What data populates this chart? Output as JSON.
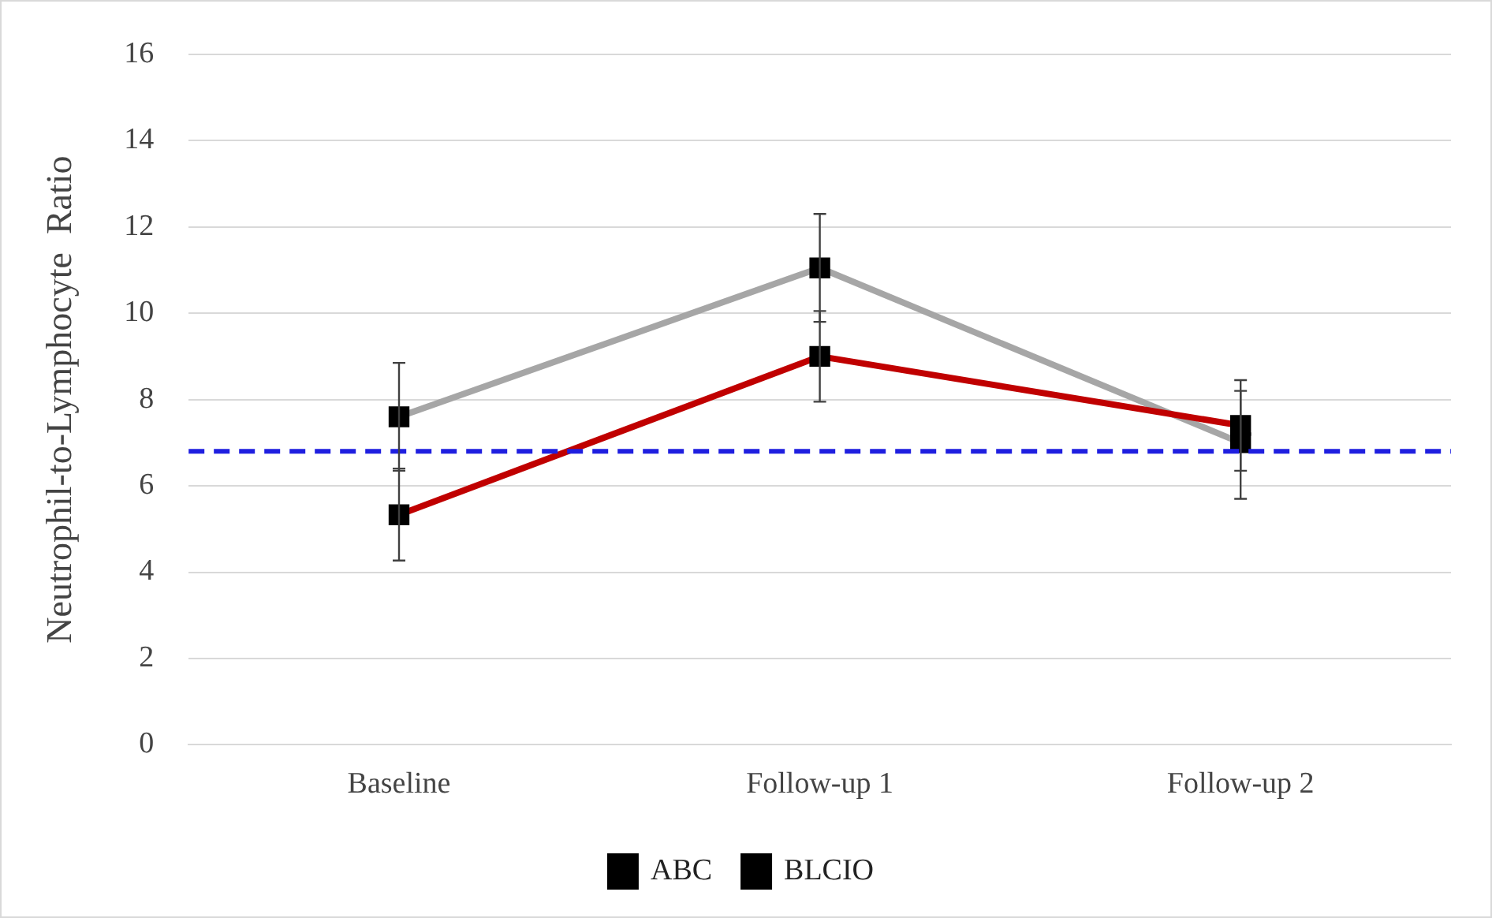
{
  "chart_data": {
    "type": "line",
    "ylabel": "Neutrophil-to-Lymphocyte  Ratio",
    "categories": [
      "Baseline",
      "Follow-up 1",
      "Follow-up 2"
    ],
    "series": [
      {
        "name": "ABC",
        "color": "#c00000",
        "values": [
          5.33,
          9.0,
          7.4
        ],
        "errors": [
          [
            4.27,
            6.4
          ],
          [
            7.95,
            10.05
          ],
          [
            6.35,
            8.45
          ]
        ]
      },
      {
        "name": "BLCIO",
        "color": "#a6a6a6",
        "values": [
          7.6,
          11.05,
          7.0
        ],
        "errors": [
          [
            6.35,
            8.85
          ],
          [
            9.8,
            12.3
          ],
          [
            5.7,
            8.2
          ]
        ]
      }
    ],
    "ylim": [
      0,
      16
    ],
    "yticks": [
      0,
      2,
      4,
      6,
      8,
      10,
      12,
      14,
      16
    ],
    "grid": "y",
    "legend": "bottom",
    "marker": "square",
    "line_style": "solid",
    "ref_lines": [
      {
        "axis": "y",
        "value": 6.8,
        "color": "#1f1fe0",
        "line_style": "dashed"
      }
    ]
  }
}
